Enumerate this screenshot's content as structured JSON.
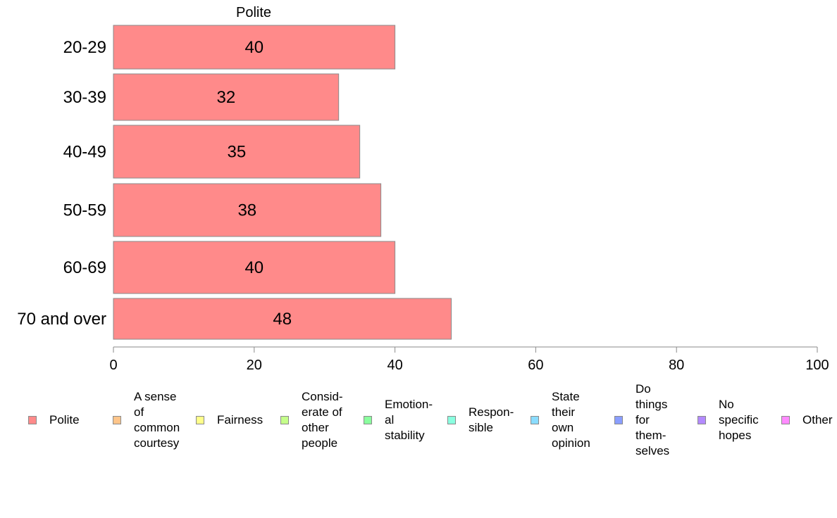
{
  "chart_data": {
    "type": "bar",
    "orientation": "horizontal",
    "title": "Polite",
    "categories": [
      "20-29",
      "30-39",
      "40-49",
      "50-59",
      "60-69",
      "70 and over"
    ],
    "series": [
      {
        "name": "Polite",
        "values": [
          40,
          32,
          35,
          38,
          40,
          48
        ],
        "color": "#ff8a8a"
      }
    ],
    "data_labels": [
      "40",
      "32",
      "35",
      "38",
      "40",
      "48"
    ],
    "xlim": [
      0,
      100
    ],
    "xticks": [
      0,
      20,
      40,
      60,
      80,
      100
    ],
    "xtick_labels": [
      "0",
      "20",
      "40",
      "60",
      "80",
      "100"
    ],
    "grid": false,
    "legend_placement": "bottom",
    "legend": [
      {
        "label": "Polite",
        "color": "#ff8a8a"
      },
      {
        "label": "A sense\nof\ncommon\ncourtesy",
        "color": "#ffc58a"
      },
      {
        "label": "Fairness",
        "color": "#ffff8a"
      },
      {
        "label": "Consid-\nerate of\nother\npeople",
        "color": "#c5ff8a"
      },
      {
        "label": "Emotion-\nal\nstability",
        "color": "#8aff9e"
      },
      {
        "label": "Respon-\nsible",
        "color": "#8affe0"
      },
      {
        "label": "State\ntheir\nown\nopinion",
        "color": "#8adcff"
      },
      {
        "label": "Do\nthings\nfor\nthem-\nselves",
        "color": "#8a9eff"
      },
      {
        "label": "No\nspecific\nhopes",
        "color": "#b38aff"
      },
      {
        "label": "Other",
        "color": "#ff8aff"
      }
    ]
  }
}
